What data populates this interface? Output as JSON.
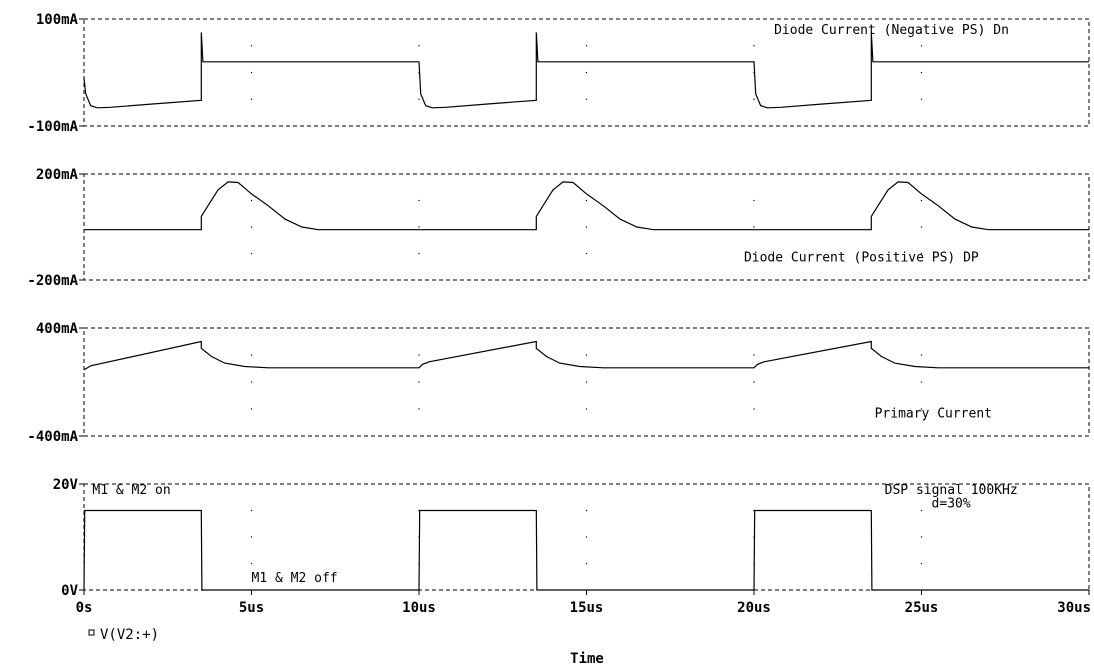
{
  "chart_data": {
    "type": "line",
    "x_unit": "us",
    "xlim": [
      0,
      30
    ],
    "x_ticks": [
      0,
      5,
      10,
      15,
      20,
      25,
      30
    ],
    "x_tick_labels": [
      "0s",
      "5us",
      "10us",
      "15us",
      "20us",
      "25us",
      "30us"
    ],
    "xlabel": "Time",
    "grid": "dotted",
    "legend": {
      "marker": "square",
      "label": "V(V2:+)",
      "placement": "bottom-left"
    },
    "panels": [
      {
        "y_unit": "mA",
        "ylim": [
          -100,
          100
        ],
        "y_tick_labels": [
          "100mA",
          "-100mA"
        ],
        "annotations": [
          {
            "text": "Diode Current (Negative PS) Dn",
            "x": 20.6,
            "y": 72
          }
        ],
        "series": {
          "x": [
            0,
            0.05,
            0.2,
            0.4,
            0.8,
            2.0,
            3.5,
            3.5,
            3.55,
            10.0,
            10.05,
            10.2,
            10.4,
            10.8,
            12.0,
            13.5,
            13.5,
            13.55,
            20.0,
            20.05,
            20.2,
            20.4,
            20.8,
            22.0,
            23.5,
            23.5,
            23.55,
            30.0
          ],
          "y": [
            -10,
            -40,
            -62,
            -66,
            -65,
            -59,
            -52,
            75,
            20,
            20,
            -40,
            -62,
            -66,
            -65,
            -59,
            -52,
            75,
            20,
            20,
            -40,
            -62,
            -66,
            -65,
            -59,
            -52,
            75,
            20,
            20
          ]
        }
      },
      {
        "y_unit": "mA",
        "ylim": [
          -200,
          200
        ],
        "y_tick_labels": [
          "200mA",
          "-200mA"
        ],
        "annotations": [
          {
            "text": "Diode Current (Positive PS) DP",
            "x": 19.7,
            "y": -130
          }
        ],
        "series": {
          "x": [
            0,
            3.5,
            3.5,
            3.75,
            4.0,
            4.3,
            4.6,
            5.0,
            5.5,
            6.0,
            6.5,
            7.0,
            10.0,
            13.5,
            13.5,
            13.75,
            14.0,
            14.3,
            14.6,
            15.0,
            15.5,
            16.0,
            16.5,
            17.0,
            20.0,
            23.5,
            23.5,
            23.75,
            24.0,
            24.3,
            24.6,
            25.0,
            25.5,
            26.0,
            26.5,
            27.0,
            30.0
          ],
          "y": [
            -10,
            -10,
            40,
            90,
            140,
            170,
            168,
            125,
            80,
            30,
            0,
            -10,
            -10,
            -10,
            40,
            90,
            140,
            170,
            168,
            125,
            80,
            30,
            0,
            -10,
            -10,
            -10,
            40,
            90,
            140,
            170,
            168,
            125,
            80,
            30,
            0,
            -10,
            -10
          ]
        }
      },
      {
        "y_unit": "mA",
        "ylim": [
          -400,
          400
        ],
        "y_tick_labels": [
          "400mA",
          "-400mA"
        ],
        "annotations": [
          {
            "text": "Primary Current",
            "x": 23.6,
            "y": -262
          }
        ],
        "series": {
          "x": [
            0,
            0.2,
            3.5,
            3.5,
            3.8,
            4.2,
            4.8,
            5.5,
            10.0,
            10.1,
            10.3,
            13.5,
            13.5,
            13.8,
            14.2,
            14.8,
            15.5,
            20.0,
            20.1,
            20.3,
            23.5,
            23.5,
            23.8,
            24.2,
            24.8,
            25.5,
            30.0
          ],
          "y": [
            90,
            120,
            300,
            250,
            190,
            140,
            115,
            105,
            105,
            130,
            150,
            300,
            250,
            190,
            140,
            115,
            105,
            105,
            130,
            150,
            300,
            250,
            190,
            140,
            115,
            105,
            105
          ]
        }
      },
      {
        "y_unit": "V",
        "ylim": [
          0,
          20
        ],
        "y_tick_labels": [
          "20V",
          "0V"
        ],
        "annotations": [
          {
            "text": "M1 & M2 on",
            "x": 0.25,
            "y": 18.1
          },
          {
            "text": "M1 & M2 off",
            "x": 5.0,
            "y": 1.5
          },
          {
            "text": "DSP signal 100KHz",
            "x": 23.9,
            "y": 18.1
          },
          {
            "text": "d=30%",
            "x": 25.3,
            "y": 15.6
          }
        ],
        "series": {
          "name": "V(V2:+)",
          "x": [
            0,
            0.02,
            3.5,
            3.52,
            10.0,
            10.02,
            13.5,
            13.52,
            20.0,
            20.02,
            23.5,
            23.52,
            30.0
          ],
          "y": [
            0,
            15,
            15,
            0,
            0,
            15,
            15,
            0,
            0,
            15,
            15,
            0,
            0
          ]
        }
      }
    ]
  }
}
